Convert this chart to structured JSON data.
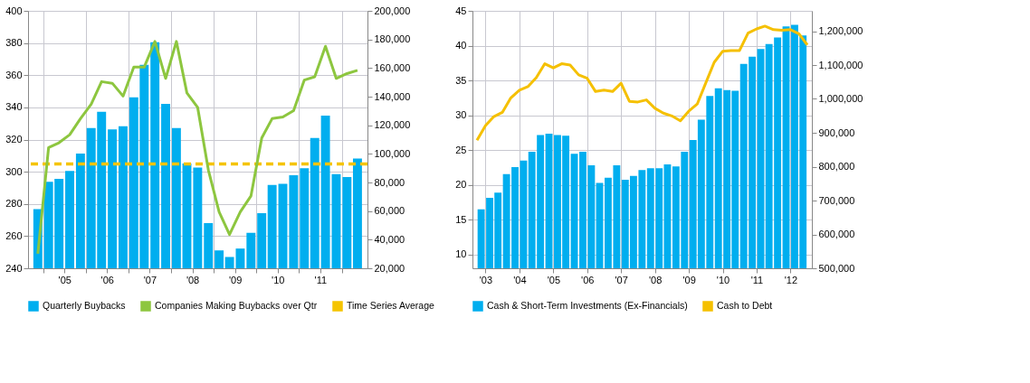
{
  "chart_data": [
    {
      "type": "bar",
      "x": [
        "2004-11-15",
        "2005-02-15",
        "2005-05-15",
        "2005-08-15",
        "2005-11-15",
        "2006-02-15",
        "2006-05-15",
        "2006-08-15",
        "2006-11-15",
        "2007-02-15",
        "2007-05-15",
        "2007-08-15",
        "2007-11-15",
        "2008-02-15",
        "2008-05-15",
        "2008-08-15",
        "2008-11-15",
        "2009-02-15",
        "2009-05-15",
        "2009-08-15",
        "2009-11-15",
        "2010-02-15",
        "2010-05-15",
        "2010-08-15",
        "2010-11-15",
        "2011-02-15",
        "2011-05-15",
        "2011-08-15",
        "2011-11-15",
        "2012-02-15",
        "2012-05-15"
      ],
      "series": [
        {
          "name": "Quarterly Buybacks",
          "axis": "y2",
          "color": "#00aeef",
          "values": [
            61300,
            80400,
            82500,
            88100,
            100200,
            118000,
            129500,
            117100,
            119300,
            139600,
            162300,
            178100,
            134900,
            118000,
            93300,
            90500,
            51600,
            32500,
            27900,
            33800,
            44800,
            58600,
            78200,
            79100,
            85000,
            90000,
            111100,
            126800,
            85900,
            83800,
            96800
          ]
        },
        {
          "name": "Companies Making Buybacks over Qtr",
          "type": "line",
          "color": "#8dc63f",
          "values": [
            249,
            315,
            318,
            323,
            333,
            342,
            356,
            355,
            347,
            365,
            365,
            381,
            358,
            381,
            349,
            340,
            301,
            275,
            261,
            275,
            285,
            321,
            333,
            334,
            338,
            357,
            359,
            378,
            358,
            361,
            363
          ]
        }
      ],
      "ref_lines": [
        {
          "axis": "y2",
          "value": 93000,
          "label": "Time Series Average",
          "color": "#f5c400",
          "line_style": "dashed"
        }
      ],
      "xlim": [
        "2004-10-01",
        "2012-07-01"
      ],
      "xticks": [
        {
          "value": "2005-01-01",
          "label": null
        },
        {
          "value": "2005-07-01",
          "label": "'05"
        },
        {
          "value": "2006-01-01",
          "label": null
        },
        {
          "value": "2006-07-01",
          "label": "'06"
        },
        {
          "value": "2007-01-01",
          "label": null
        },
        {
          "value": "2007-07-01",
          "label": "'07"
        },
        {
          "value": "2008-01-01",
          "label": null
        },
        {
          "value": "2008-07-01",
          "label": "'08"
        },
        {
          "value": "2009-01-01",
          "label": null
        },
        {
          "value": "2009-07-01",
          "label": "'09"
        },
        {
          "value": "2010-01-01",
          "label": null
        },
        {
          "value": "2010-07-01",
          "label": "'10"
        },
        {
          "value": "2011-01-01",
          "label": null
        },
        {
          "value": "2011-07-01",
          "label": "'11"
        },
        {
          "value": "2012-01-01",
          "label": null
        }
      ],
      "ylim": [
        240,
        400
      ],
      "yticks": [
        240,
        260,
        280,
        300,
        320,
        340,
        360,
        380,
        400
      ],
      "y2lim": [
        20000,
        200000
      ],
      "y2ticks": [
        {
          "value": 20000,
          "label": "20,000"
        },
        {
          "value": 40000,
          "label": "40,000"
        },
        {
          "value": 60000,
          "label": "60,000"
        },
        {
          "value": 80000,
          "label": "80,000"
        },
        {
          "value": 100000,
          "label": "100,000"
        },
        {
          "value": 120000,
          "label": "120,000"
        },
        {
          "value": 140000,
          "label": "140,000"
        },
        {
          "value": 160000,
          "label": "160,000"
        },
        {
          "value": 180000,
          "label": "180,000"
        },
        {
          "value": 200000,
          "label": "200,000"
        }
      ],
      "grid": true,
      "legend": "bottom"
    },
    {
      "type": "bar",
      "x": [
        "2002-11-15",
        "2003-02-15",
        "2003-05-15",
        "2003-08-15",
        "2003-11-15",
        "2004-02-15",
        "2004-05-15",
        "2004-08-15",
        "2004-11-15",
        "2005-02-15",
        "2005-05-15",
        "2005-08-15",
        "2005-11-15",
        "2006-02-15",
        "2006-05-15",
        "2006-08-15",
        "2006-11-15",
        "2007-02-15",
        "2007-05-15",
        "2007-08-15",
        "2007-11-15",
        "2008-02-15",
        "2008-05-15",
        "2008-08-15",
        "2008-11-15",
        "2009-02-15",
        "2009-05-15",
        "2009-08-15",
        "2009-11-15",
        "2010-02-15",
        "2010-05-15",
        "2010-08-15",
        "2010-11-15",
        "2011-02-15",
        "2011-05-15",
        "2011-08-15",
        "2011-11-15",
        "2012-02-15",
        "2012-05-15"
      ],
      "series": [
        {
          "name": "Cash & Short-Term Investments (Ex-Financials)",
          "axis": "y2",
          "color": "#00aeef",
          "values": [
            674100,
            708100,
            723300,
            777700,
            798900,
            817900,
            844300,
            893500,
            897300,
            893500,
            891300,
            838300,
            844300,
            804200,
            752000,
            767100,
            804200,
            761100,
            772400,
            789900,
            795200,
            795200,
            806500,
            800400,
            844300,
            878400,
            938900,
            1008600,
            1031300,
            1026000,
            1023700,
            1103200,
            1124400,
            1147100,
            1162200,
            1181100,
            1213700,
            1219000,
            1187200
          ]
        },
        {
          "name": "Cash to Debt",
          "type": "line",
          "color": "#f5c000",
          "x": [
            "2002-10-01",
            "2003-01-01",
            "2003-04-01",
            "2003-07-01",
            "2003-10-01",
            "2004-01-01",
            "2004-04-01",
            "2004-07-01",
            "2004-10-01",
            "2005-01-01",
            "2005-04-01",
            "2005-07-01",
            "2005-10-01",
            "2006-01-01",
            "2006-04-01",
            "2006-07-01",
            "2006-10-01",
            "2007-01-01",
            "2007-04-01",
            "2007-07-01",
            "2007-10-01",
            "2008-01-01",
            "2008-04-01",
            "2008-07-01",
            "2008-10-01",
            "2009-01-01",
            "2009-04-01",
            "2009-07-01",
            "2009-10-01",
            "2010-01-01",
            "2010-04-01",
            "2010-07-01",
            "2010-10-01",
            "2011-01-01",
            "2011-04-01",
            "2011-07-01",
            "2011-10-01",
            "2012-01-01",
            "2012-04-01",
            "2012-07-01"
          ],
          "values": [
            26.4,
            28.5,
            29.8,
            30.4,
            32.5,
            33.6,
            34.1,
            35.4,
            37.4,
            36.8,
            37.4,
            37.2,
            35.8,
            35.3,
            33.4,
            33.6,
            33.4,
            34.6,
            32.0,
            31.9,
            32.2,
            31.0,
            30.3,
            29.9,
            29.2,
            30.6,
            31.6,
            34.6,
            37.6,
            39.2,
            39.3,
            39.3,
            41.8,
            42.4,
            42.8,
            42.3,
            42.2,
            42.3,
            41.7,
            40.1
          ]
        }
      ],
      "xlim": [
        "2002-10-01",
        "2012-07-01"
      ],
      "xticks": [
        {
          "value": "2003-01-01",
          "label": "'03"
        },
        {
          "value": "2004-01-01",
          "label": "'04"
        },
        {
          "value": "2005-01-01",
          "label": "'05"
        },
        {
          "value": "2006-01-01",
          "label": "'06"
        },
        {
          "value": "2007-01-01",
          "label": "'07"
        },
        {
          "value": "2008-01-01",
          "label": "'08"
        },
        {
          "value": "2009-01-01",
          "label": "'09"
        },
        {
          "value": "2010-01-01",
          "label": "'10"
        },
        {
          "value": "2011-01-01",
          "label": "'11"
        },
        {
          "value": "2012-01-01",
          "label": "'12"
        }
      ],
      "ylim": [
        8,
        45
      ],
      "yticks": [
        10,
        15,
        20,
        25,
        30,
        35,
        40,
        45
      ],
      "y2lim": [
        500000,
        1260000
      ],
      "y2ticks": [
        {
          "value": 500000,
          "label": "500,000"
        },
        {
          "value": 600000,
          "label": "600,000"
        },
        {
          "value": 700000,
          "label": "700,000"
        },
        {
          "value": 800000,
          "label": "800,000"
        },
        {
          "value": 900000,
          "label": "900,000"
        },
        {
          "value": 1000000,
          "label": "1,000,000"
        },
        {
          "value": 1100000,
          "label": "1,100,000"
        },
        {
          "value": 1200000,
          "label": "1,200,000"
        }
      ],
      "grid": true,
      "legend": "bottom"
    }
  ]
}
